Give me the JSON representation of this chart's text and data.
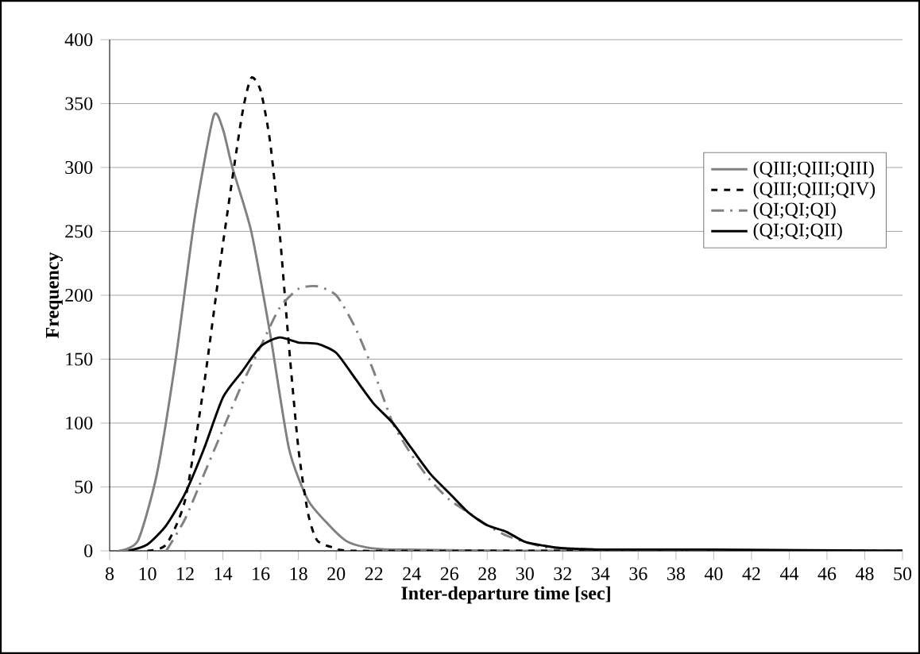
{
  "chart_data": {
    "type": "line",
    "xlabel": "Inter-departure time [sec]",
    "ylabel": "Frequency",
    "xlim": [
      8,
      50
    ],
    "xticks": [
      8,
      10,
      12,
      14,
      16,
      18,
      20,
      22,
      24,
      26,
      28,
      30,
      32,
      34,
      36,
      38,
      40,
      42,
      44,
      46,
      48,
      50
    ],
    "ylim": [
      0,
      400
    ],
    "yticks": [
      0,
      50,
      100,
      150,
      200,
      250,
      300,
      350,
      400
    ],
    "grid": "y",
    "legend": "right",
    "series": [
      {
        "name": "(QIII;QIII;QIII)",
        "color": "#808080",
        "line_style": "solid",
        "x": [
          8.5,
          9.5,
          10.5,
          11.5,
          12.5,
          13.5,
          14,
          14.5,
          15.5,
          16.5,
          17.5,
          18.5,
          19.5,
          20.5,
          21.5,
          23,
          30,
          40,
          50
        ],
        "values": [
          0,
          8,
          60,
          150,
          260,
          340,
          330,
          300,
          250,
          170,
          80,
          40,
          22,
          8,
          3,
          1,
          0,
          0,
          0
        ]
      },
      {
        "name": "(QIII;QIII;QIV)",
        "color": "#000000",
        "line_style": "dashed",
        "x": [
          10,
          11,
          12,
          13,
          14,
          15,
          15.5,
          16,
          16.5,
          17,
          17.5,
          18,
          18.5,
          19,
          20,
          21,
          30,
          40,
          50
        ],
        "values": [
          0,
          5,
          40,
          130,
          240,
          340,
          370,
          360,
          320,
          250,
          160,
          80,
          30,
          8,
          2,
          0,
          0,
          0,
          0
        ]
      },
      {
        "name": "(QI;QI;QI)",
        "color": "#808080",
        "line_style": "dashdot",
        "x": [
          11,
          12,
          13,
          14,
          15,
          16,
          17,
          18,
          19,
          20,
          21,
          22,
          23,
          24,
          25,
          26,
          27,
          28,
          29,
          30,
          31,
          32,
          34,
          40,
          50
        ],
        "values": [
          0,
          25,
          60,
          95,
          130,
          160,
          190,
          205,
          207,
          200,
          175,
          140,
          100,
          75,
          55,
          40,
          30,
          20,
          12,
          7,
          3,
          2,
          1,
          0,
          0
        ]
      },
      {
        "name": "(QI;QI;QII)",
        "color": "#000000",
        "line_style": "solid",
        "x": [
          9,
          10,
          11,
          12,
          13,
          14,
          15,
          16,
          17,
          18,
          19,
          20,
          21,
          22,
          23,
          24,
          25,
          26,
          27,
          28,
          29,
          30,
          31,
          32,
          34,
          40,
          50
        ],
        "values": [
          0,
          5,
          20,
          45,
          80,
          120,
          140,
          160,
          167,
          163,
          162,
          155,
          135,
          115,
          100,
          80,
          60,
          45,
          30,
          20,
          15,
          7,
          4,
          2,
          1,
          1,
          0
        ]
      }
    ]
  }
}
